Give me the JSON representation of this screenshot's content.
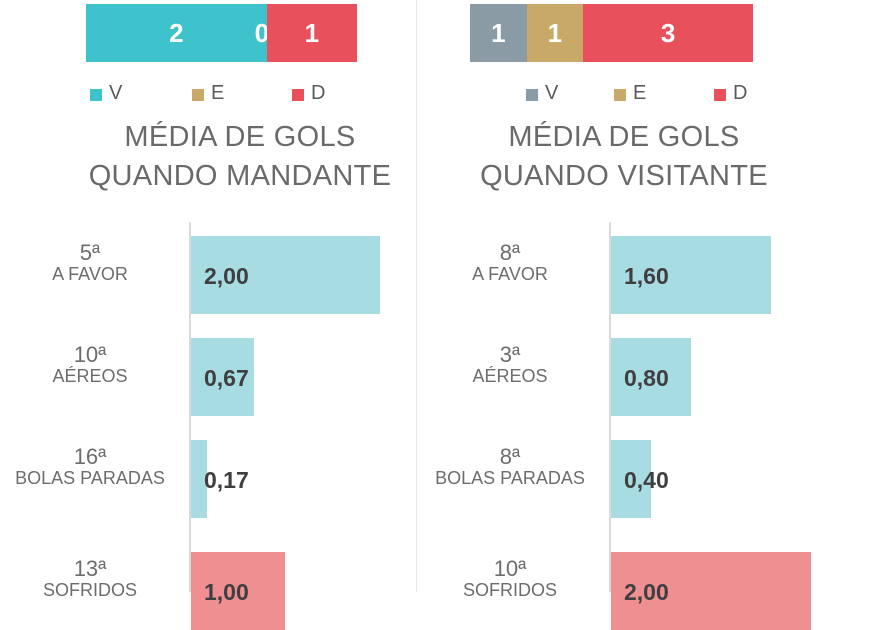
{
  "colors": {
    "victory_home": "#3ec3cd",
    "victory_away": "#8a9ba5",
    "draw": "#c9a968",
    "defeat": "#e8505b",
    "bar_for": "#a8dce3",
    "bar_conceded": "#ef8f92"
  },
  "chart_data": [
    {
      "type": "bar",
      "orientation": "horizontal",
      "stacked": true,
      "categories": [
        "V",
        "E",
        "D"
      ],
      "values": [
        2,
        0,
        1
      ],
      "data_labels": [
        "2",
        "0",
        "1"
      ],
      "legend": [
        "V",
        "E",
        "D"
      ],
      "legend_position": "bottom"
    },
    {
      "type": "bar",
      "orientation": "horizontal",
      "title": "MÉDIA DE GOLS QUANDO MANDANTE",
      "title_lines": [
        "MÉDIA DE GOLS",
        "QUANDO MANDANTE"
      ],
      "categories": [
        "A FAVOR",
        "AÉREOS",
        "BOLAS PARADAS",
        "SOFRIDOS"
      ],
      "ranks": [
        "5ª",
        "10ª",
        "16ª",
        "13ª"
      ],
      "values": [
        2.0,
        0.67,
        0.17,
        1.0
      ],
      "data_labels": [
        "2,00",
        "0,67",
        "0,17",
        "1,00"
      ],
      "xlim": [
        0,
        3.0
      ]
    },
    {
      "type": "bar",
      "orientation": "horizontal",
      "stacked": true,
      "categories": [
        "V",
        "E",
        "D"
      ],
      "values": [
        1,
        1,
        3
      ],
      "data_labels": [
        "1",
        "1",
        "3"
      ],
      "legend": [
        "V",
        "E",
        "D"
      ],
      "legend_position": "bottom"
    },
    {
      "type": "bar",
      "orientation": "horizontal",
      "title": "MÉDIA DE GOLS QUANDO VISITANTE",
      "title_lines": [
        "MÉDIA DE GOLS",
        "QUANDO VISITANTE"
      ],
      "categories": [
        "A FAVOR",
        "AÉREOS",
        "BOLAS PARADAS",
        "SOFRIDOS"
      ],
      "ranks": [
        "8ª",
        "3ª",
        "8ª",
        "10ª"
      ],
      "values": [
        1.6,
        0.8,
        0.4,
        2.0
      ],
      "data_labels": [
        "1,60",
        "0,80",
        "0,40",
        "2,00"
      ],
      "xlim": [
        0,
        2.0
      ]
    }
  ]
}
